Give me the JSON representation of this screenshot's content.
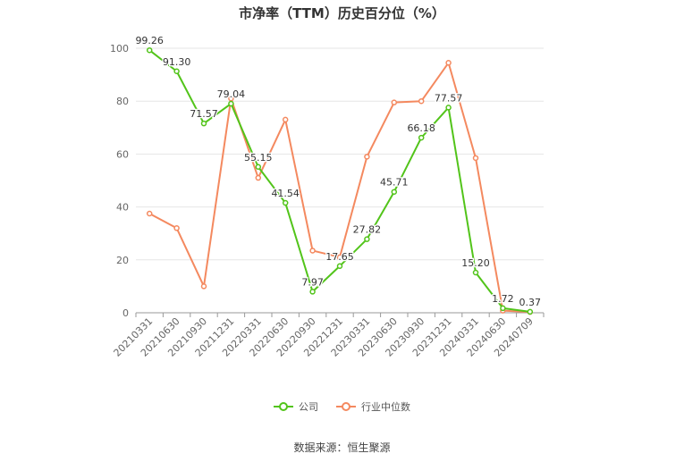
{
  "chart_data": {
    "type": "line",
    "title": "市净率（TTM）历史百分位（%）",
    "categories": [
      "20210331",
      "20210630",
      "20210930",
      "20211231",
      "20220331",
      "20220630",
      "20220930",
      "20221231",
      "20230331",
      "20230630",
      "20230930",
      "20231231",
      "20240331",
      "20240630",
      "20240709"
    ],
    "series": [
      {
        "name": "公司",
        "color": "#52c41a",
        "values": [
          99.26,
          91.3,
          71.57,
          79.04,
          55.15,
          41.54,
          7.97,
          17.65,
          27.82,
          45.71,
          66.18,
          77.57,
          15.2,
          1.72,
          0.37
        ],
        "labels": [
          "99.26",
          "91.30",
          "71.57",
          "79.04",
          "55.15",
          "41.54",
          "7.97",
          "17.65",
          "27.82",
          "45.71",
          "66.18",
          "77.57",
          "15.20",
          "1.72",
          "0.37"
        ]
      },
      {
        "name": "行业中位数",
        "color": "#f4895f",
        "values": [
          37.5,
          32.0,
          10.0,
          81.0,
          51.0,
          73.0,
          23.5,
          21.0,
          59.0,
          79.5,
          80.0,
          94.5,
          58.5,
          0.8,
          0.3
        ]
      }
    ],
    "y_ticks": [
      "0",
      "20",
      "40",
      "60",
      "80",
      "100"
    ],
    "ylim": [
      0,
      100
    ],
    "grid": true,
    "legend_position": "bottom"
  },
  "source_text": "数据来源：恒生聚源"
}
